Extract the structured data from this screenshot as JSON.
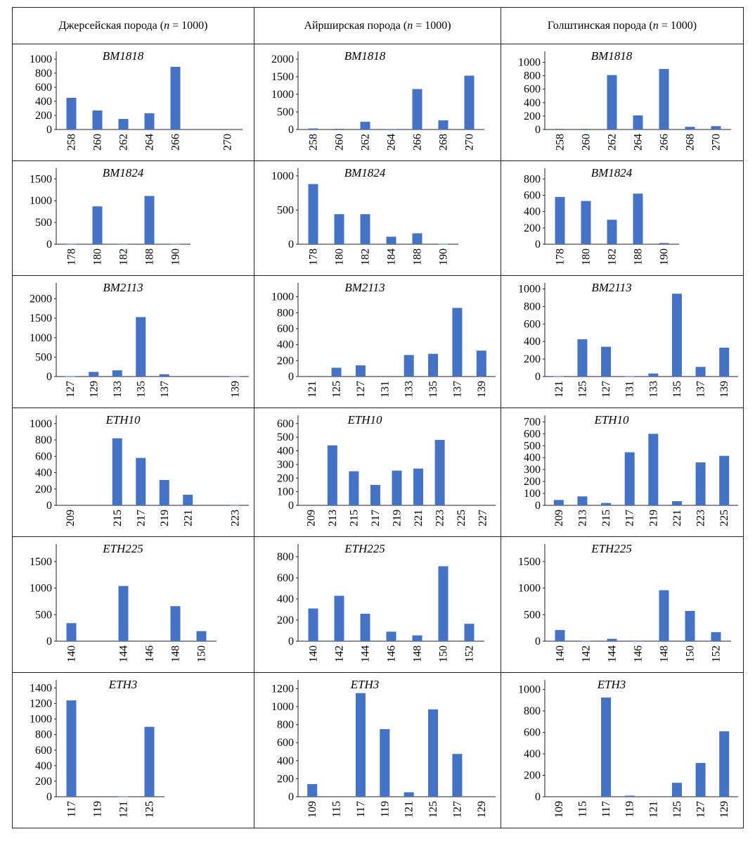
{
  "headers": [
    {
      "prefix": "Джерсейская порода (",
      "var": "n",
      "suffix": " = 1000)"
    },
    {
      "prefix": "Айрширская порода  (",
      "var": "n",
      "suffix": " = 1000)"
    },
    {
      "prefix": "Голштинская порода (",
      "var": "n",
      "suffix": " = 1000)"
    }
  ],
  "colors": {
    "bar": "#4472c4",
    "axis": "#222222"
  },
  "chart_data": [
    {
      "type": "bar",
      "title": "BM1818",
      "row": 0,
      "col": 0,
      "categories": [
        "258",
        "260",
        "262",
        "264",
        "266",
        "",
        "270"
      ],
      "values": [
        450,
        270,
        150,
        230,
        890,
        0,
        0
      ],
      "yticks": [
        0,
        200,
        400,
        600,
        800,
        1000
      ],
      "ylim": [
        0,
        1050
      ]
    },
    {
      "type": "bar",
      "title": "BM1818",
      "row": 0,
      "col": 1,
      "categories": [
        "258",
        "260",
        "262",
        "264",
        "266",
        "268",
        "270"
      ],
      "values": [
        30,
        20,
        220,
        5,
        1150,
        260,
        1530
      ],
      "yticks": [
        0,
        500,
        1000,
        1500,
        2000
      ],
      "ylim": [
        0,
        2100
      ]
    },
    {
      "type": "bar",
      "title": "BM1818",
      "row": 0,
      "col": 2,
      "categories": [
        "258",
        "260",
        "262",
        "264",
        "266",
        "268",
        "270"
      ],
      "values": [
        10,
        10,
        810,
        210,
        900,
        40,
        50
      ],
      "yticks": [
        0,
        200,
        400,
        600,
        800,
        1000
      ],
      "ylim": [
        0,
        1100
      ]
    },
    {
      "type": "bar",
      "title": "BM1824",
      "row": 1,
      "col": 0,
      "categories": [
        "178",
        "180",
        "182",
        "188",
        "190"
      ],
      "values": [
        10,
        870,
        10,
        1110,
        10
      ],
      "yticks": [
        0,
        500,
        1000,
        1500
      ],
      "ylim": [
        0,
        1650
      ]
    },
    {
      "type": "bar",
      "title": "BM1824",
      "row": 1,
      "col": 1,
      "categories": [
        "178",
        "180",
        "182",
        "184",
        "188",
        "190"
      ],
      "values": [
        880,
        440,
        440,
        110,
        160,
        5
      ],
      "yticks": [
        0,
        500,
        1000
      ],
      "ylim": [
        0,
        1050
      ]
    },
    {
      "type": "bar",
      "title": "BM1824",
      "row": 1,
      "col": 2,
      "categories": [
        "178",
        "180",
        "182",
        "188",
        "190"
      ],
      "values": [
        580,
        530,
        300,
        620,
        15
      ],
      "yticks": [
        0,
        200,
        400,
        600,
        800
      ],
      "ylim": [
        0,
        880
      ]
    },
    {
      "type": "bar",
      "title": "BM2113",
      "row": 2,
      "col": 0,
      "categories": [
        "127",
        "129",
        "133",
        "135",
        "137",
        "",
        "",
        "139"
      ],
      "values": [
        10,
        120,
        160,
        1530,
        60,
        0,
        0,
        10
      ],
      "yticks": [
        0,
        500,
        1000,
        1500,
        2000
      ],
      "ylim": [
        0,
        2300
      ]
    },
    {
      "type": "bar",
      "title": "BM2113",
      "row": 2,
      "col": 1,
      "categories": [
        "121",
        "125",
        "127",
        "131",
        "133",
        "135",
        "137",
        "139"
      ],
      "values": [
        0,
        110,
        140,
        0,
        270,
        285,
        860,
        325
      ],
      "yticks": [
        0,
        200,
        400,
        600,
        800,
        1000
      ],
      "ylim": [
        0,
        1120
      ]
    },
    {
      "type": "bar",
      "title": "BM2113",
      "row": 2,
      "col": 2,
      "categories": [
        "121",
        "125",
        "127",
        "131",
        "133",
        "135",
        "137",
        "139"
      ],
      "values": [
        5,
        425,
        340,
        5,
        35,
        945,
        110,
        330
      ],
      "yticks": [
        0,
        200,
        400,
        600,
        800,
        1000
      ],
      "ylim": [
        0,
        1020
      ]
    },
    {
      "type": "bar",
      "title": "ETH10",
      "row": 3,
      "col": 0,
      "categories": [
        "209",
        "",
        "215",
        "217",
        "219",
        "221",
        "",
        "223"
      ],
      "values": [
        0,
        0,
        820,
        580,
        310,
        130,
        0,
        5
      ],
      "yticks": [
        0,
        200,
        400,
        600,
        800,
        1000
      ],
      "ylim": [
        0,
        1050
      ]
    },
    {
      "type": "bar",
      "title": "ETH10",
      "row": 3,
      "col": 1,
      "categories": [
        "209",
        "213",
        "215",
        "217",
        "219",
        "221",
        "223",
        "225",
        "227"
      ],
      "values": [
        0,
        440,
        250,
        150,
        255,
        270,
        480,
        0,
        0
      ],
      "yticks": [
        0,
        100,
        200,
        300,
        400,
        500,
        600
      ],
      "ylim": [
        0,
        630
      ]
    },
    {
      "type": "bar",
      "title": "ETH10",
      "row": 3,
      "col": 2,
      "categories": [
        "209",
        "213",
        "215",
        "217",
        "219",
        "221",
        "223",
        "225"
      ],
      "values": [
        45,
        75,
        20,
        445,
        600,
        35,
        360,
        415
      ],
      "yticks": [
        0,
        100,
        200,
        300,
        400,
        500,
        600,
        700
      ],
      "ylim": [
        0,
        720
      ]
    },
    {
      "type": "bar",
      "title": "ETH225",
      "row": 4,
      "col": 0,
      "categories": [
        "140",
        "",
        "144",
        "146",
        "148",
        "150"
      ],
      "values": [
        340,
        0,
        1040,
        0,
        660,
        190
      ],
      "yticks": [
        0,
        500,
        1000,
        1500
      ],
      "ylim": [
        0,
        1750
      ]
    },
    {
      "type": "bar",
      "title": "ETH225",
      "row": 4,
      "col": 1,
      "categories": [
        "140",
        "142",
        "144",
        "146",
        "148",
        "150",
        "152"
      ],
      "values": [
        310,
        430,
        260,
        90,
        55,
        710,
        165
      ],
      "yticks": [
        0,
        200,
        400,
        600,
        800
      ],
      "ylim": [
        0,
        880
      ]
    },
    {
      "type": "bar",
      "title": "ETH225",
      "row": 4,
      "col": 2,
      "categories": [
        "140",
        "142",
        "144",
        "146",
        "148",
        "150",
        "152"
      ],
      "values": [
        210,
        5,
        45,
        10,
        960,
        570,
        170
      ],
      "yticks": [
        0,
        500,
        1000,
        1500
      ],
      "ylim": [
        0,
        1750
      ]
    },
    {
      "type": "bar",
      "title": "ETH3",
      "row": 5,
      "col": 0,
      "categories": [
        "117",
        "119",
        "121",
        "125"
      ],
      "values": [
        1240,
        0,
        5,
        900
      ],
      "yticks": [
        0,
        200,
        400,
        600,
        800,
        1000,
        1200,
        1400
      ],
      "ylim": [
        0,
        1450
      ]
    },
    {
      "type": "bar",
      "title": "ETH3",
      "row": 5,
      "col": 1,
      "categories": [
        "109",
        "115",
        "117",
        "119",
        "121",
        "125",
        "127",
        "129"
      ],
      "values": [
        140,
        0,
        1150,
        750,
        50,
        970,
        475,
        0
      ],
      "yticks": [
        0,
        200,
        400,
        600,
        800,
        1000,
        1200
      ],
      "ylim": [
        0,
        1250
      ]
    },
    {
      "type": "bar",
      "title": "ETH3",
      "row": 5,
      "col": 2,
      "categories": [
        "109",
        "115",
        "117",
        "119",
        "121",
        "125",
        "127",
        "129"
      ],
      "values": [
        0,
        0,
        925,
        10,
        0,
        130,
        315,
        610
      ],
      "yticks": [
        0,
        200,
        400,
        600,
        800,
        1000
      ],
      "ylim": [
        0,
        1050
      ]
    }
  ]
}
